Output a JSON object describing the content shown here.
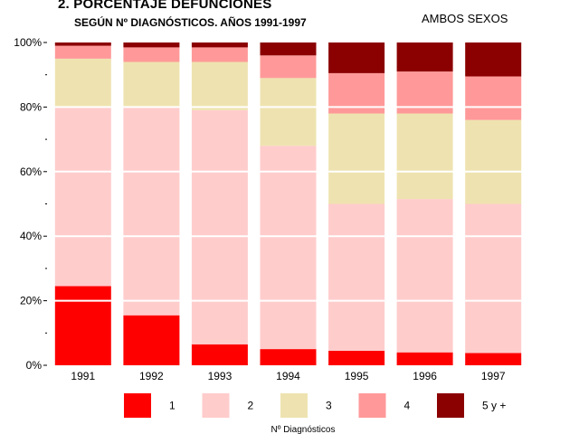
{
  "header": {
    "title": "2. PORCENTAJE DEFUNCIONES",
    "subtitle": "SEGÚN Nº DIAGNÓSTICOS. AÑOS 1991-1997",
    "sex_label": "AMBOS SEXOS"
  },
  "colors": {
    "1": "#ff0000",
    "2": "#ffcccc",
    "3": "#eee3b0",
    "4": "#ff9999",
    "5 y +": "#8b0000"
  },
  "chart_data": {
    "type": "bar",
    "stacked": "percent",
    "categories": [
      "1991",
      "1992",
      "1993",
      "1994",
      "1995",
      "1996",
      "1997"
    ],
    "series": [
      {
        "name": "1",
        "values": [
          24.5,
          15.5,
          6.5,
          5.0,
          4.5,
          4.0,
          3.8
        ]
      },
      {
        "name": "2",
        "values": [
          55.5,
          64.5,
          72.5,
          63.0,
          45.5,
          47.5,
          46.2
        ]
      },
      {
        "name": "3",
        "values": [
          15.0,
          14.0,
          15.0,
          21.0,
          28.0,
          26.5,
          26.0
        ]
      },
      {
        "name": "4",
        "values": [
          4.0,
          4.5,
          4.5,
          7.0,
          12.5,
          13.0,
          13.5
        ]
      },
      {
        "name": "5 y +",
        "values": [
          1.0,
          1.5,
          1.5,
          4.0,
          9.5,
          9.0,
          10.5
        ]
      }
    ],
    "ylim": [
      0,
      100
    ],
    "yticks": [
      "0%",
      "20%",
      "40%",
      "60%",
      "80%",
      "100%"
    ],
    "legend_title": "Nº Diagnósticos",
    "legend_position": "bottom",
    "grid": true
  }
}
